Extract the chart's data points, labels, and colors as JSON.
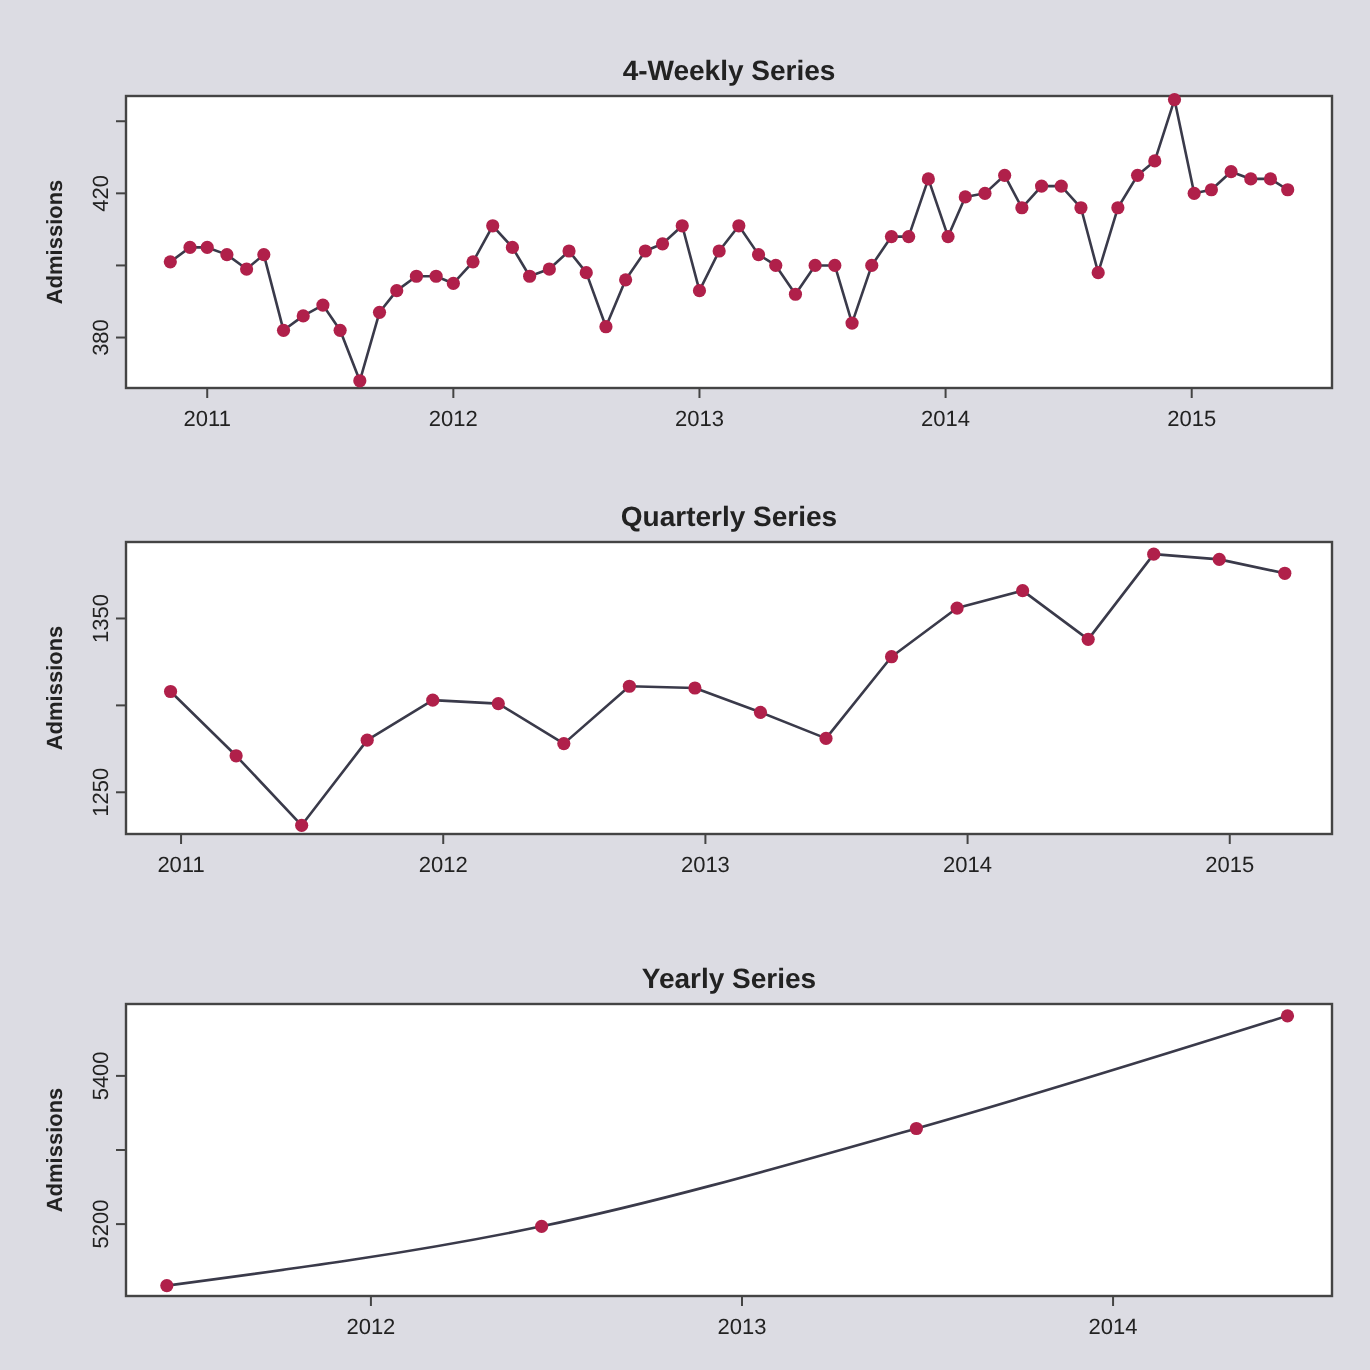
{
  "chart_data": [
    {
      "type": "line",
      "title": "4-Weekly Series",
      "ylabel": "Admissions",
      "marker": "circle",
      "line_style": "solid",
      "grid": false,
      "xlim": [
        2010.67,
        2015.57
      ],
      "xticks": [
        2011,
        2012,
        2013,
        2014,
        2015
      ],
      "ylim": [
        366,
        447
      ],
      "yticks": [
        380,
        {
          "value": 400,
          "label": null
        },
        420,
        {
          "value": 440,
          "label": null
        }
      ],
      "series": [
        {
          "color": "#b0204a",
          "x": [
            2010.85,
            2010.93,
            2011.0,
            2011.08,
            2011.16,
            2011.23,
            2011.31,
            2011.39,
            2011.47,
            2011.54,
            2011.62,
            2011.7,
            2011.77,
            2011.85,
            2011.93,
            2012.0,
            2012.08,
            2012.16,
            2012.24,
            2012.31,
            2012.39,
            2012.47,
            2012.54,
            2012.62,
            2012.7,
            2012.78,
            2012.85,
            2012.93,
            2013.0,
            2013.08,
            2013.16,
            2013.24,
            2013.31,
            2013.39,
            2013.47,
            2013.55,
            2013.62,
            2013.7,
            2013.78,
            2013.85,
            2013.93,
            2014.01,
            2014.08,
            2014.16,
            2014.24,
            2014.31,
            2014.39,
            2014.47,
            2014.55,
            2014.62,
            2014.7,
            2014.78,
            2014.85,
            2014.93,
            2015.01,
            2015.08,
            2015.16,
            2015.24,
            2015.32,
            2015.39
          ],
          "values": [
            401,
            405,
            405,
            403,
            399,
            403,
            382,
            386,
            389,
            382,
            368,
            387,
            393,
            397,
            397,
            395,
            401,
            411,
            405,
            397,
            399,
            404,
            398,
            383,
            396,
            404,
            406,
            411,
            393,
            404,
            411,
            403,
            400,
            392,
            400,
            400,
            384,
            400,
            408,
            408,
            424,
            408,
            419,
            420,
            425,
            416,
            422,
            422,
            416,
            398,
            416,
            425,
            429,
            446,
            420,
            421,
            426,
            424,
            424,
            421
          ]
        }
      ]
    },
    {
      "type": "line",
      "title": "Quarterly Series",
      "ylabel": "Admissions",
      "marker": "circle",
      "line_style": "solid",
      "grid": false,
      "xlim": [
        2010.79,
        2015.39
      ],
      "xticks": [
        2011,
        2012,
        2013,
        2014,
        2015
      ],
      "ylim": [
        1226,
        1394
      ],
      "yticks": [
        1250,
        {
          "value": 1300,
          "label": null
        },
        1350
      ],
      "series": [
        {
          "color": "#b0204a",
          "x": [
            2010.96,
            2011.21,
            2011.46,
            2011.71,
            2011.96,
            2012.21,
            2012.46,
            2012.71,
            2012.96,
            2013.21,
            2013.46,
            2013.71,
            2013.96,
            2014.21,
            2014.46,
            2014.71,
            2014.96,
            2015.21
          ],
          "values": [
            1308,
            1271,
            1231,
            1280,
            1303,
            1301,
            1278,
            1311,
            1310,
            1296,
            1281,
            1328,
            1356,
            1366,
            1338,
            1387,
            1384,
            1376
          ]
        }
      ]
    },
    {
      "type": "line",
      "title": "Yearly Series",
      "ylabel": "Admissions",
      "marker": "circle",
      "line_style": "solid",
      "grid": false,
      "xlim": [
        2011.34,
        2014.59
      ],
      "xticks": [
        2012,
        2013,
        2014
      ],
      "ylim": [
        5103,
        5497
      ],
      "yticks": [
        5200,
        {
          "value": 5300,
          "label": null
        },
        5400
      ],
      "series": [
        {
          "color": "#b0204a",
          "x": [
            2011.45,
            2012.46,
            2013.47,
            2014.47
          ],
          "values": [
            5117,
            5197,
            5329,
            5481
          ]
        }
      ]
    }
  ]
}
